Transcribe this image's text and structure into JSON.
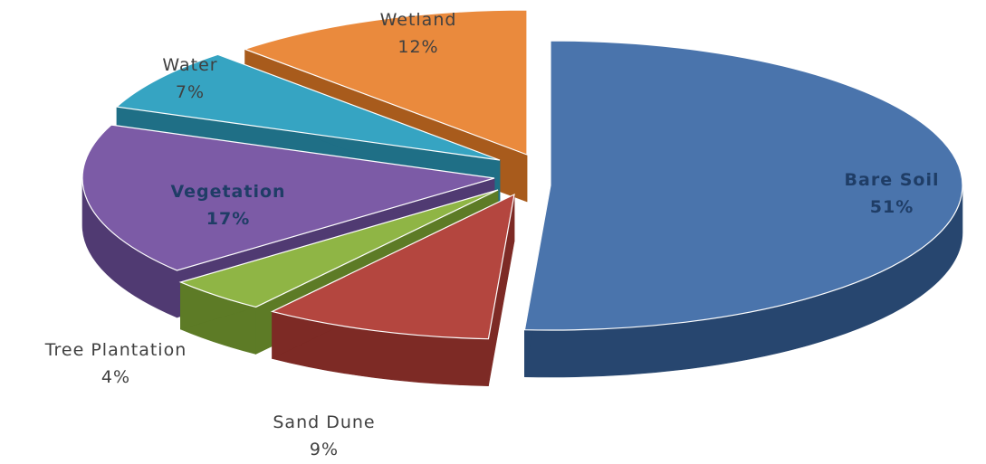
{
  "chart_data": {
    "type": "pie",
    "style": "3d-exploded",
    "title": "",
    "legend": "none",
    "slices": [
      {
        "name": "Bare Soil",
        "label": "Bare Soil",
        "value": 51,
        "pct_label": "51%",
        "color": "#4a74ac",
        "side_color": "#27466f",
        "label_position": "inside"
      },
      {
        "name": "Sand Dune",
        "label": "Sand Dune",
        "value": 9,
        "pct_label": "9%",
        "color": "#b4463f",
        "side_color": "#7d2a25",
        "label_position": "outside"
      },
      {
        "name": "Tree Plantation",
        "label": "Tree Plantation",
        "value": 4,
        "pct_label": "4%",
        "color": "#8fb545",
        "side_color": "#5d7b26",
        "label_position": "outside"
      },
      {
        "name": "Vegetation",
        "label": "Vegetation",
        "value": 17,
        "pct_label": "17%",
        "color": "#7c5ba6",
        "side_color": "#503a72",
        "label_position": "inside"
      },
      {
        "name": "Water",
        "label": "Water",
        "value": 7,
        "pct_label": "7%",
        "color": "#36a4c2",
        "side_color": "#1f6f86",
        "label_position": "outside"
      },
      {
        "name": "Wetland",
        "label": "Wetland",
        "value": 12,
        "pct_label": "12%",
        "color": "#ea8a3d",
        "side_color": "#a85b1c",
        "label_position": "outside"
      }
    ]
  }
}
